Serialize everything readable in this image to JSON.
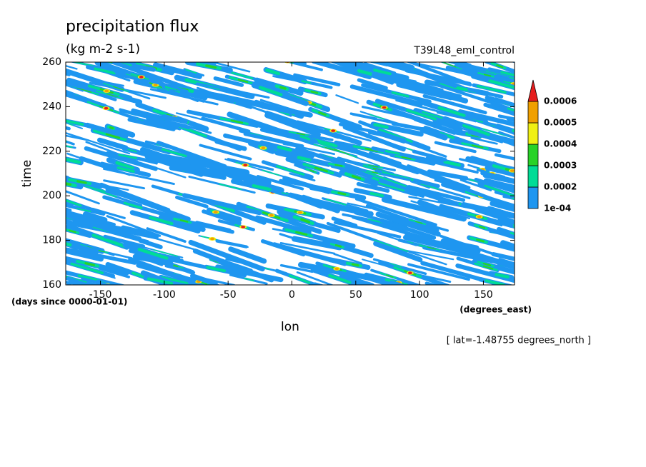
{
  "chart_data": {
    "type": "contourf",
    "title": "precipitation flux",
    "subtitle": "(kg m-2 s-1)",
    "annotation": "T39L48_eml_control",
    "x_label": "lon",
    "y_label": "time",
    "x_units": "(degrees_east)",
    "y_units": "(days since 0000-01-01)",
    "note": "[ lat=-1.48755 degrees_north ]",
    "xlim": [
      -177.1875,
      174.375
    ],
    "ylim": [
      160,
      260
    ],
    "xticks": [
      -150,
      -100,
      -50,
      0,
      50,
      100,
      150
    ],
    "yticks": [
      160,
      180,
      200,
      220,
      240,
      260
    ],
    "levels": [
      {
        "value": 0.0001,
        "label": "1e-04"
      },
      0.0002,
      0.0003,
      0.0004,
      0.0005,
      0.0006
    ],
    "colors": [
      "#1e96f0",
      "#00dc96",
      "#28d228",
      "#f0f014",
      "#f0a000",
      "#e61e1e"
    ]
  }
}
